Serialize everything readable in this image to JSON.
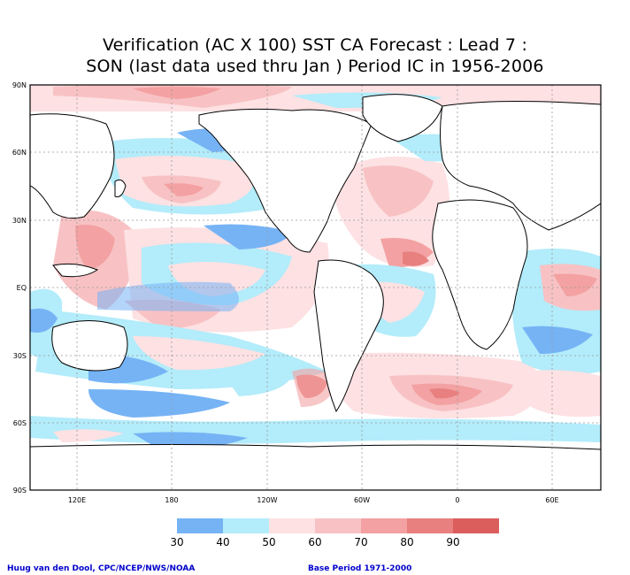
{
  "title": {
    "line1": "Verification (AC X 100) SST CA Forecast : Lead 7 :",
    "line2": "SON (last data used thru Jan ) Period IC in 1956-2006"
  },
  "axes": {
    "lat_labels": [
      "90N",
      "60N",
      "30N",
      "EQ",
      "30S",
      "60S",
      "90S"
    ],
    "lon_labels": [
      "120E",
      "180",
      "120W",
      "60W",
      "0",
      "60E"
    ]
  },
  "colorbar": {
    "bins": [
      {
        "color": "#76b3f5"
      },
      {
        "color": "#b3ecfa"
      },
      {
        "color": "#fde1e3"
      },
      {
        "color": "#f8c2c4"
      },
      {
        "color": "#f3a1a2"
      },
      {
        "color": "#e7807f"
      },
      {
        "color": "#db5e5c"
      }
    ],
    "tick_labels": [
      "30",
      "40",
      "50",
      "60",
      "70",
      "80",
      "90"
    ]
  },
  "footer": {
    "credit": "Huug van den Dool, CPC/NCEP/NWS/NOAA",
    "base_period": "Base Period 1971-2000"
  },
  "colors": {
    "blue": "#76b3f5",
    "cyan": "#b3ecfa",
    "pink_light": "#fde1e3",
    "pink": "#f8c2c4",
    "red_light": "#f3a1a2",
    "red": "#e7807f",
    "coast": "#000000",
    "grid": "#999999",
    "footer_text": "#0000cc"
  }
}
